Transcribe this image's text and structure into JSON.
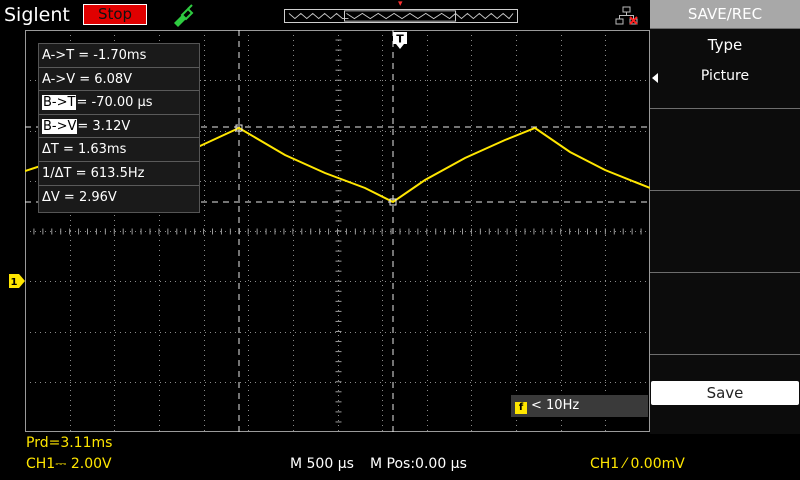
{
  "header": {
    "brand": "Siglent",
    "run_status": "Stop",
    "icons": {
      "probe": "probe-icon",
      "network": "network-disconnected-icon"
    }
  },
  "cursor_readout": {
    "a_time": "A->T = -1.70ms",
    "a_volt": "A->V = 6.08V",
    "b_time_prefix": "B->T",
    "b_time_value": "= -70.00 µs",
    "b_volt_prefix": "B->V",
    "b_volt_value": "= 3.12V",
    "delta_t": "ΔT = 1.63ms",
    "inv_delta_t": "1/ΔT = 613.5Hz",
    "delta_v": "ΔV = 2.96V"
  },
  "trigger": {
    "marker_label": "T",
    "freq_icon": "f",
    "freq_readout": "< 10Hz"
  },
  "channel_marker": "1",
  "menu": {
    "title": "SAVE/REC",
    "type_label": "Type",
    "type_value": "Picture",
    "save_label": "Save"
  },
  "status_bar": {
    "period": "Prd=3.11ms",
    "ch1_scale": "CH1⎓ 2.00V",
    "timebase": "M 500 µs",
    "mpos": "M Pos:0.00 µs",
    "trigger_setting": "CH1 ⁄ 0.00mV"
  },
  "colors": {
    "trace": "#ffe600",
    "grid": "#8a8a8a",
    "stop_bg": "#e00000",
    "menu_title_bg": "#a8a8a8"
  }
}
